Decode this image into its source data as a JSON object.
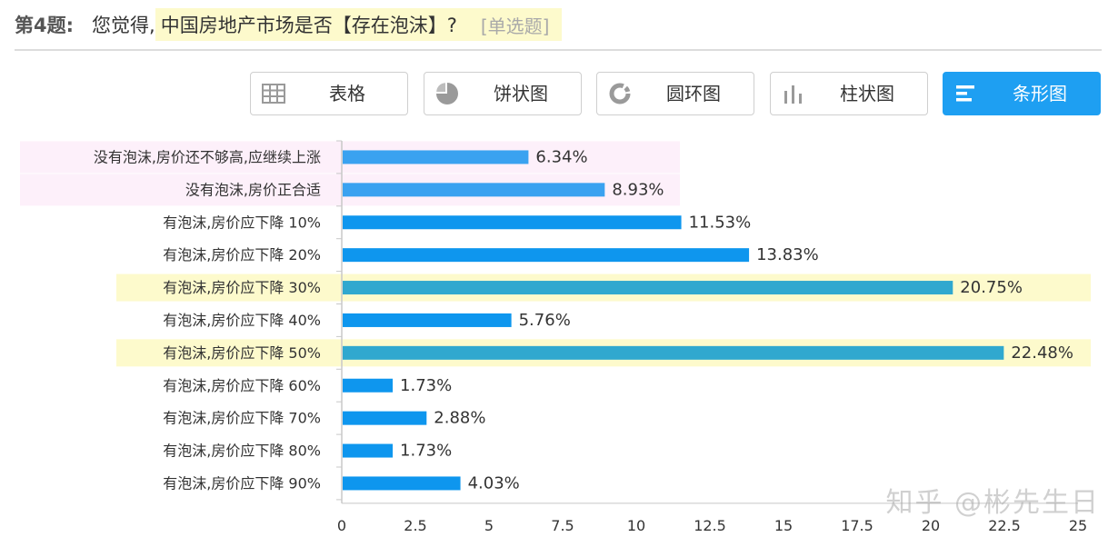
{
  "question": {
    "number": "第4题:",
    "lead": "您觉得,",
    "text": "中国房地产市场是否【存在泡沫】?",
    "type": "[单选题]"
  },
  "view_buttons": [
    {
      "label": "表格",
      "icon": "table-icon",
      "active": false
    },
    {
      "label": "饼状图",
      "icon": "pie-chart-icon",
      "active": false
    },
    {
      "label": "圆环图",
      "icon": "donut-chart-icon",
      "active": false
    },
    {
      "label": "柱状图",
      "icon": "column-chart-icon",
      "active": false
    },
    {
      "label": "条形图",
      "icon": "bar-chart-icon",
      "active": true
    }
  ],
  "colors": {
    "bar_default": "#0e96ee",
    "bar_light": "#3aa2f0",
    "bar_highlight": "#30a8cf",
    "highlight_yellow": "#fdfacc",
    "highlight_pink": "#fdf0fa",
    "accent": "#1e9ff2"
  },
  "chart_data": {
    "type": "bar",
    "orientation": "horizontal",
    "categories": [
      "没有泡沫,房价还不够高,应继续上涨",
      "没有泡沫,房价正合适",
      "有泡沫,房价应下降 10%",
      "有泡沫,房价应下降 20%",
      "有泡沫,房价应下降 30%",
      "有泡沫,房价应下降 40%",
      "有泡沫,房价应下降 50%",
      "有泡沫,房价应下降 60%",
      "有泡沫,房价应下降 70%",
      "有泡沫,房价应下降 80%",
      "有泡沫,房价应下降 90%"
    ],
    "values": [
      6.34,
      8.93,
      11.53,
      13.83,
      20.75,
      5.76,
      22.48,
      1.73,
      2.88,
      1.73,
      4.03
    ],
    "value_labels": [
      "6.34%",
      "8.93%",
      "11.53%",
      "13.83%",
      "20.75%",
      "5.76%",
      "22.48%",
      "1.73%",
      "2.88%",
      "1.73%",
      "4.03%"
    ],
    "row_style": [
      "pink",
      "pink",
      "normal",
      "normal",
      "yellow",
      "normal",
      "yellow",
      "normal",
      "normal",
      "normal",
      "normal"
    ],
    "xlim": [
      0,
      25
    ],
    "xticks": [
      "0",
      "2.5",
      "5",
      "7.5",
      "10",
      "12.5",
      "15",
      "17.5",
      "20",
      "22.5",
      "25"
    ],
    "xlabel": "",
    "ylabel": "",
    "grid": false
  },
  "watermark": "知乎 @彬先生日"
}
